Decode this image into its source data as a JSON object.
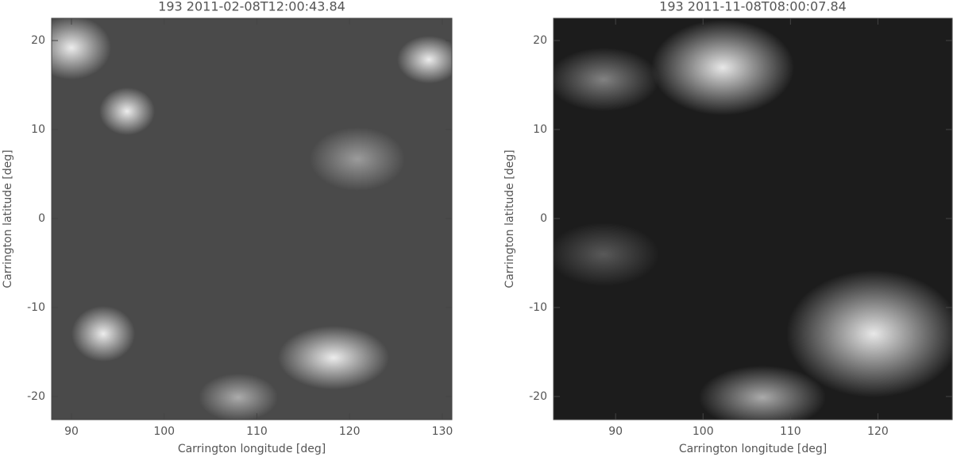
{
  "chart_data": [
    {
      "type": "image",
      "title": "193 2011-02-08T12:00:43.84",
      "xlabel": "Carrington longitude [deg]",
      "ylabel": "Carrington latitude [deg]",
      "xlim": [
        87.86,
        131.03
      ],
      "ylim": [
        -22.6,
        22.5
      ],
      "xticks": [
        90,
        100,
        110,
        120,
        130
      ],
      "yticks": [
        -20,
        -10,
        0,
        10,
        20
      ]
    },
    {
      "type": "image",
      "title": "193 2011-11-08T08:00:07.84",
      "xlabel": "Carrington longitude [deg]",
      "ylabel": "Carrington latitude [deg]",
      "xlim": [
        82.9,
        128.5
      ],
      "ylim": [
        -22.6,
        22.5
      ],
      "xticks": [
        90,
        100,
        110,
        120
      ],
      "yticks": [
        -20,
        -10,
        0,
        10,
        20
      ]
    }
  ]
}
